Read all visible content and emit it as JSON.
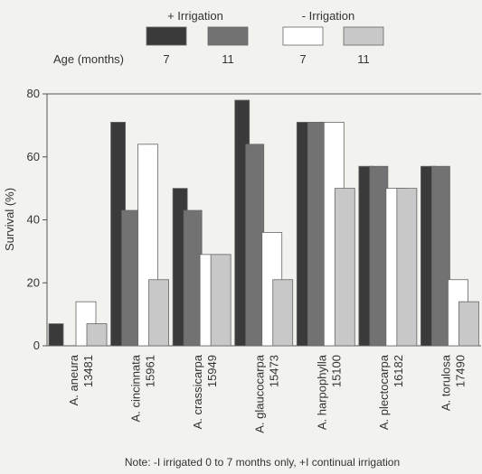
{
  "chart_data": {
    "type": "bar",
    "ylabel": "Survival (%)",
    "ylim": [
      0,
      80
    ],
    "yticks": [
      0,
      20,
      40,
      60,
      80
    ],
    "categories": [
      {
        "name": "A. aneura",
        "code": "13481"
      },
      {
        "name": "A. cincinnata",
        "code": "15961"
      },
      {
        "name": "A. crassicarpa",
        "code": "15949"
      },
      {
        "name": "A. glaucocarpa",
        "code": "15473"
      },
      {
        "name": "A. harpophylla",
        "code": "15100"
      },
      {
        "name": "A. plectocarpa",
        "code": "16182"
      },
      {
        "name": "A. torulosa",
        "code": "17490"
      }
    ],
    "series": [
      {
        "name": "+ Irrigation 7",
        "group": "+ Irrigation",
        "age": "7",
        "color": "#3a3a3a",
        "values": [
          7,
          71,
          50,
          78,
          71,
          57,
          57
        ]
      },
      {
        "name": "+ Irrigation 11",
        "group": "+ Irrigation",
        "age": "11",
        "color": "#727272",
        "values": [
          0,
          43,
          43,
          64,
          71,
          57,
          57
        ]
      },
      {
        "name": "- Irrigation 7",
        "group": "- Irrigation",
        "age": "7",
        "color": "#ffffff",
        "values": [
          14,
          64,
          29,
          36,
          71,
          50,
          21
        ]
      },
      {
        "name": "- Irrigation 11",
        "group": "- Irrigation",
        "age": "11",
        "color": "#c8c8c8",
        "values": [
          7,
          21,
          29,
          21,
          50,
          50,
          14
        ]
      }
    ],
    "legend": {
      "placement": "top",
      "irrigated_label": "+ Irrigation",
      "not_irrigated_label": "- Irrigation",
      "age_label": "Age (months)",
      "ages": [
        "7",
        "11",
        "7",
        "11"
      ]
    },
    "note": "Note: -I irrigated 0 to 7 months only, +I continual irrigation"
  }
}
